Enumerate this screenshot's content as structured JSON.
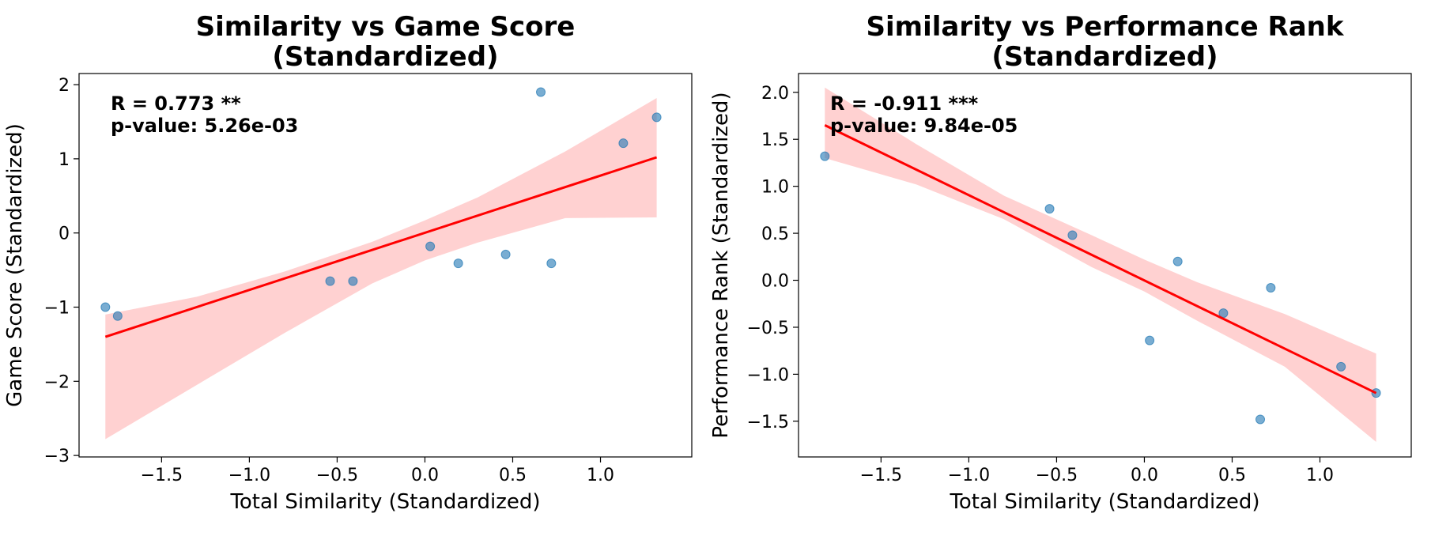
{
  "chart_data": [
    {
      "type": "scatter",
      "title_lines": [
        "Similarity vs Game Score",
        "(Standardized)"
      ],
      "xlabel": "Total Similarity (Standardized)",
      "ylabel": "Game Score (Standardized)",
      "xlim": [
        -1.97,
        1.52
      ],
      "ylim": [
        -3.02,
        2.15
      ],
      "xticks": [
        -1.5,
        -1.0,
        -0.5,
        0.0,
        0.5,
        1.0
      ],
      "xtick_labels": [
        "−1.5",
        "−1.0",
        "−0.5",
        "0.0",
        "0.5",
        "1.0"
      ],
      "yticks": [
        -3,
        -2,
        -1,
        0,
        1,
        2
      ],
      "ytick_labels": [
        "−3",
        "−2",
        "−1",
        "0",
        "1",
        "2"
      ],
      "points": {
        "x": [
          -1.82,
          -1.75,
          -0.54,
          -0.41,
          0.03,
          0.19,
          0.46,
          0.66,
          0.72,
          1.13,
          1.32
        ],
        "y": [
          -1.0,
          -1.12,
          -0.65,
          -0.65,
          -0.18,
          -0.41,
          -0.29,
          1.9,
          -0.41,
          1.21,
          1.56
        ]
      },
      "fit_line": {
        "x": [
          -1.82,
          1.32
        ],
        "y": [
          -1.4,
          1.02
        ]
      },
      "confidence_band": {
        "x": [
          -1.82,
          -1.3,
          -0.8,
          -0.3,
          0.0,
          0.3,
          0.8,
          1.32
        ],
        "upper": [
          -1.1,
          -0.86,
          -0.52,
          -0.12,
          0.17,
          0.48,
          1.1,
          1.82
        ],
        "lower": [
          -2.78,
          -2.05,
          -1.35,
          -0.68,
          -0.37,
          -0.13,
          0.2,
          0.21
        ]
      },
      "annotation_lines": [
        "R = 0.773 **",
        "p-value: 5.26e-03"
      ],
      "colors": {
        "points": "#1f77b4",
        "fit": "#ff0000",
        "band": "#ffb3b3"
      }
    },
    {
      "type": "scatter",
      "title_lines": [
        "Similarity vs Performance Rank",
        "(Standardized)"
      ],
      "xlabel": "Total Similarity (Standardized)",
      "ylabel": "Performance Rank (Standardized)",
      "xlim": [
        -1.97,
        1.52
      ],
      "ylim": [
        -1.88,
        2.2
      ],
      "xticks": [
        -1.5,
        -1.0,
        -0.5,
        0.0,
        0.5,
        1.0
      ],
      "xtick_labels": [
        "−1.5",
        "−1.0",
        "−0.5",
        "0.0",
        "0.5",
        "1.0"
      ],
      "yticks": [
        -1.5,
        -1.0,
        -0.5,
        0.0,
        0.5,
        1.0,
        1.5,
        2.0
      ],
      "ytick_labels": [
        "−1.5",
        "−1.0",
        "−0.5",
        "0.0",
        "0.5",
        "1.0",
        "1.5",
        "2.0"
      ],
      "points": {
        "x": [
          -1.82,
          -0.54,
          -0.41,
          0.03,
          0.19,
          0.45,
          0.66,
          0.72,
          1.12,
          1.32
        ],
        "y": [
          1.32,
          0.76,
          0.48,
          -0.64,
          0.2,
          -0.35,
          -1.48,
          -0.08,
          -0.92,
          -1.2
        ]
      },
      "fit_line": {
        "x": [
          -1.82,
          1.32
        ],
        "y": [
          1.65,
          -1.2
        ]
      },
      "confidence_band": {
        "x": [
          -1.82,
          -1.3,
          -0.8,
          -0.3,
          0.0,
          0.3,
          0.8,
          1.32
        ],
        "upper": [
          2.05,
          1.45,
          0.9,
          0.48,
          0.22,
          -0.02,
          -0.36,
          -0.78
        ],
        "lower": [
          1.3,
          1.02,
          0.65,
          0.14,
          -0.12,
          -0.43,
          -0.92,
          -1.72
        ]
      },
      "annotation_lines": [
        "R = -0.911 ***",
        "p-value: 9.84e-05"
      ],
      "colors": {
        "points": "#1f77b4",
        "fit": "#ff0000",
        "band": "#ffb3b3"
      }
    }
  ]
}
